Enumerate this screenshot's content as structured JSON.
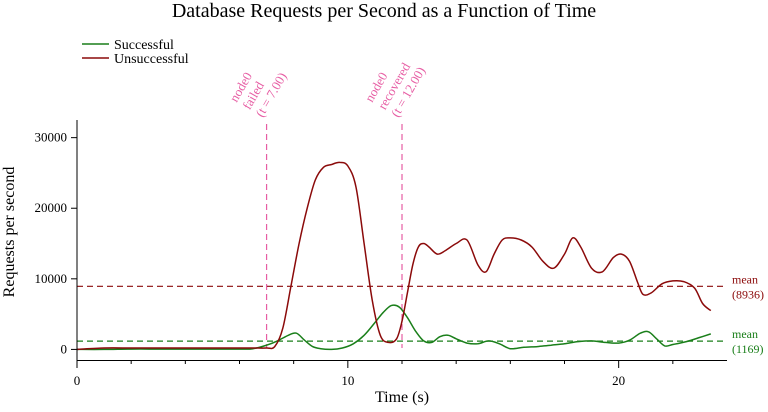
{
  "chart_data": {
    "type": "line",
    "title": "Database Requests per Second as a Function of Time",
    "xlabel": "Time (s)",
    "ylabel": "Requests per second",
    "xlim": [
      0,
      24
    ],
    "ylim": [
      -1500,
      32500
    ],
    "x_ticks": [
      0,
      10,
      20
    ],
    "x_tick_labels": [
      "0",
      "10",
      "20"
    ],
    "x_minor_ticks": [
      2,
      4,
      6,
      8,
      12,
      14,
      16,
      18,
      22
    ],
    "y_ticks": [
      0,
      10000,
      20000,
      30000
    ],
    "y_tick_labels": [
      "0",
      "10000",
      "20000",
      "30000"
    ],
    "grid": false,
    "legend_position": "top-left",
    "series": [
      {
        "name": "Successful",
        "color": "#1a7f1a",
        "x": [
          0,
          1,
          2,
          3,
          4,
          5,
          6,
          6.5,
          7,
          7.4,
          7.8,
          8.1,
          8.4,
          8.7,
          9.0,
          9.4,
          9.8,
          10.2,
          10.6,
          11.0,
          11.3,
          11.6,
          11.9,
          12.2,
          12.5,
          12.8,
          13.1,
          13.4,
          13.7,
          14.0,
          14.4,
          14.8,
          15.2,
          15.6,
          16.0,
          16.5,
          17.0,
          17.5,
          18.0,
          18.5,
          19.0,
          19.5,
          20.0,
          20.4,
          20.8,
          21.1,
          21.4,
          21.7,
          22.0,
          22.5,
          23.0,
          23.4
        ],
        "y": [
          0,
          0,
          50,
          50,
          50,
          50,
          50,
          100,
          600,
          1200,
          2000,
          2300,
          1300,
          400,
          100,
          0,
          200,
          800,
          2000,
          3800,
          5200,
          6200,
          6000,
          4500,
          2600,
          1200,
          1000,
          1800,
          2000,
          1500,
          900,
          800,
          1200,
          800,
          100,
          300,
          400,
          600,
          800,
          1100,
          1200,
          1000,
          900,
          1300,
          2300,
          2500,
          1500,
          500,
          700,
          1100,
          1700,
          2200
        ]
      },
      {
        "name": "Unsuccessful",
        "color": "#8b0a0a",
        "x": [
          0,
          1,
          2,
          3,
          4,
          5,
          6,
          6.5,
          7,
          7.3,
          7.6,
          7.9,
          8.2,
          8.5,
          8.8,
          9.1,
          9.4,
          9.7,
          10.0,
          10.3,
          10.6,
          10.9,
          11.2,
          11.5,
          11.8,
          12.0,
          12.2,
          12.4,
          12.6,
          12.8,
          13.0,
          13.3,
          13.6,
          14.0,
          14.4,
          14.8,
          15.1,
          15.4,
          15.7,
          16.0,
          16.4,
          16.8,
          17.2,
          17.6,
          18.0,
          18.3,
          18.6,
          19.0,
          19.4,
          19.8,
          20.1,
          20.4,
          20.7,
          20.9,
          21.2,
          21.6,
          22.0,
          22.4,
          22.8,
          23.1,
          23.4
        ],
        "y": [
          0,
          200,
          200,
          200,
          200,
          200,
          200,
          200,
          200,
          400,
          3000,
          9000,
          15000,
          20000,
          24000,
          25800,
          26200,
          26500,
          26000,
          23000,
          15000,
          7000,
          2000,
          1000,
          1500,
          4000,
          8000,
          12000,
          14500,
          15000,
          14500,
          13500,
          14000,
          15000,
          15500,
          12000,
          11000,
          13500,
          15500,
          15800,
          15500,
          14500,
          12500,
          11500,
          13500,
          15800,
          14500,
          11500,
          11000,
          13000,
          13500,
          12500,
          9500,
          7800,
          8000,
          9300,
          9700,
          9600,
          8700,
          6500,
          5500
        ]
      }
    ],
    "mean_lines": [
      {
        "series": "Unsuccessful",
        "value": 8936,
        "label_lines": [
          "mean",
          "(8936)"
        ],
        "color": "#8b0a0a"
      },
      {
        "series": "Successful",
        "value": 1169,
        "label_lines": [
          "mean",
          "(1169)"
        ],
        "color": "#1a7f1a"
      }
    ],
    "annotations": [
      {
        "x": 7,
        "color": "#e75ea4",
        "label_lines": [
          "node0",
          "failed",
          "(t = 7.00)"
        ]
      },
      {
        "x": 12,
        "color": "#e75ea4",
        "label_lines": [
          "node0",
          "recovered",
          "(t = 12.00)"
        ]
      }
    ]
  }
}
